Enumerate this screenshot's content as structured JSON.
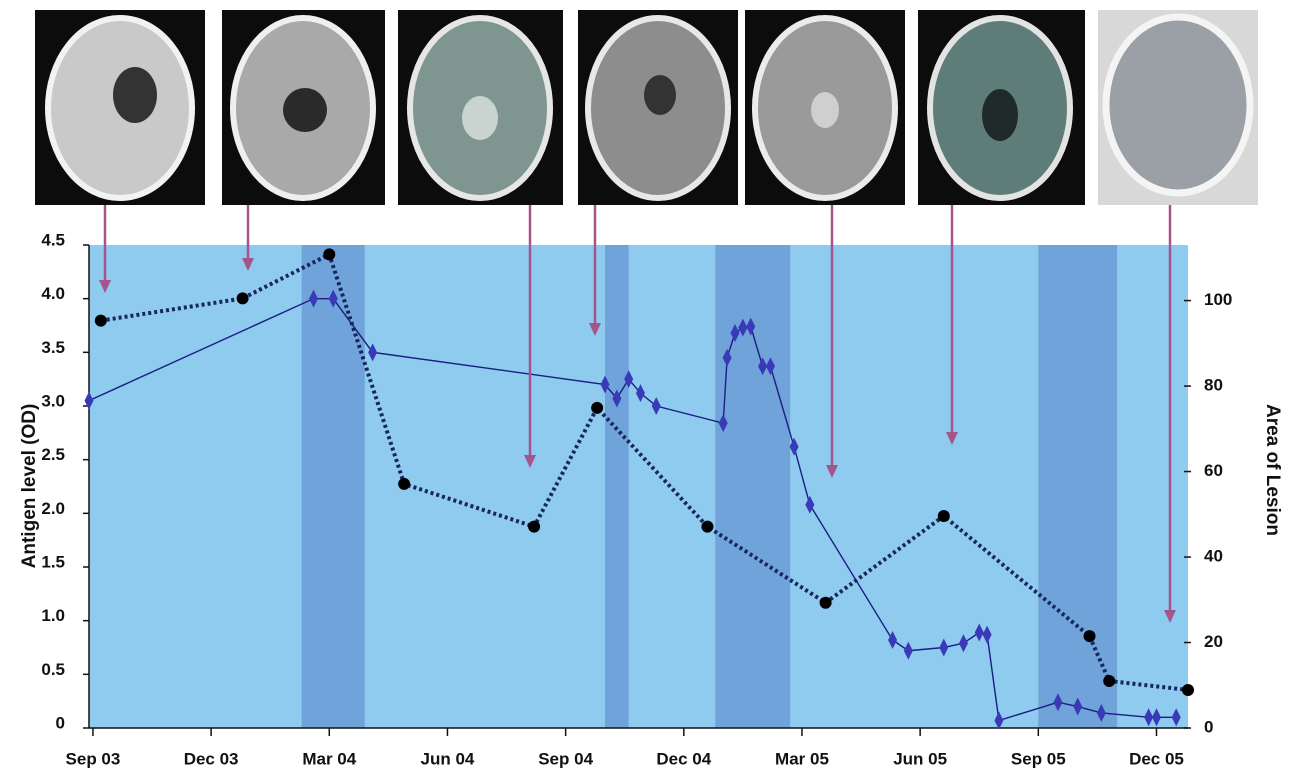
{
  "chart_data": {
    "type": "line",
    "y_label": "Antigen level (OD)",
    "y2_label": "Area of Lesion",
    "xlim": [
      -0.1,
      27.8
    ],
    "xticks": [
      {
        "value": 0,
        "label": "Sep 03"
      },
      {
        "value": 3,
        "label": "Dec 03"
      },
      {
        "value": 6,
        "label": "Mar 04"
      },
      {
        "value": 9,
        "label": "Jun 04"
      },
      {
        "value": 12,
        "label": "Sep 04"
      },
      {
        "value": 15,
        "label": "Dec 04"
      },
      {
        "value": 18,
        "label": "Mar  05"
      },
      {
        "value": 21,
        "label": "Jun 05"
      },
      {
        "value": 24,
        "label": "Sep 05"
      },
      {
        "value": 27,
        "label": "Dec 05"
      }
    ],
    "ylim": [
      0,
      4.5
    ],
    "yticks": [
      0,
      0.5,
      {
        "value": 1,
        "label": "1.0"
      },
      1.5,
      {
        "value": 2,
        "label": "2.0"
      },
      2.5,
      {
        "value": 3,
        "label": "3.0"
      },
      3.5,
      {
        "value": 4,
        "label": "4.0"
      },
      4.5
    ],
    "y2lim": [
      0,
      113
    ],
    "y2ticks": [
      0,
      20,
      40,
      60,
      80,
      100
    ],
    "background_color": "#8ecbee",
    "shaded_color": "#6fa3da",
    "shaded_periods": [
      [
        5.3,
        6.9
      ],
      [
        13.0,
        13.6
      ],
      [
        15.8,
        17.7
      ],
      [
        24.0,
        26.0
      ]
    ],
    "series": [
      {
        "color": "#1c1c86",
        "marker_color": "#3a3ab8",
        "marker": "diamond",
        "line_style": "solid",
        "x": [
          -0.1,
          5.6,
          6.1,
          7.1,
          13.0,
          13.3,
          13.6,
          13.9,
          14.3,
          16.0,
          16.1,
          16.3,
          16.5,
          16.7,
          17.0,
          17.2,
          17.8,
          18.2,
          20.3,
          20.7,
          21.6,
          22.1,
          22.5,
          22.7,
          23.0,
          24.5,
          25.0,
          25.6,
          26.8,
          27.0,
          27.5
        ],
        "values": [
          3.05,
          4.0,
          4.0,
          3.5,
          3.2,
          3.07,
          3.25,
          3.12,
          3.0,
          2.84,
          3.45,
          3.68,
          3.73,
          3.74,
          3.37,
          3.37,
          2.62,
          2.08,
          0.82,
          0.72,
          0.75,
          0.79,
          0.89,
          0.87,
          0.07,
          0.24,
          0.2,
          0.14,
          0.1,
          0.1,
          0.1
        ]
      },
      {
        "color": "#17275e",
        "marker_color": "#000000",
        "marker": "circle",
        "line_style": "dotted",
        "axis": "y2",
        "x": [
          0.2,
          3.8,
          6.0,
          7.9,
          11.2,
          12.8,
          15.6,
          18.6,
          21.6,
          25.3,
          25.8,
          27.8
        ],
        "values": [
          95.3,
          100.5,
          110.8,
          57.1,
          47.1,
          74.9,
          47.1,
          29.3,
          49.6,
          21.5,
          11.0,
          8.9
        ]
      }
    ]
  }
}
